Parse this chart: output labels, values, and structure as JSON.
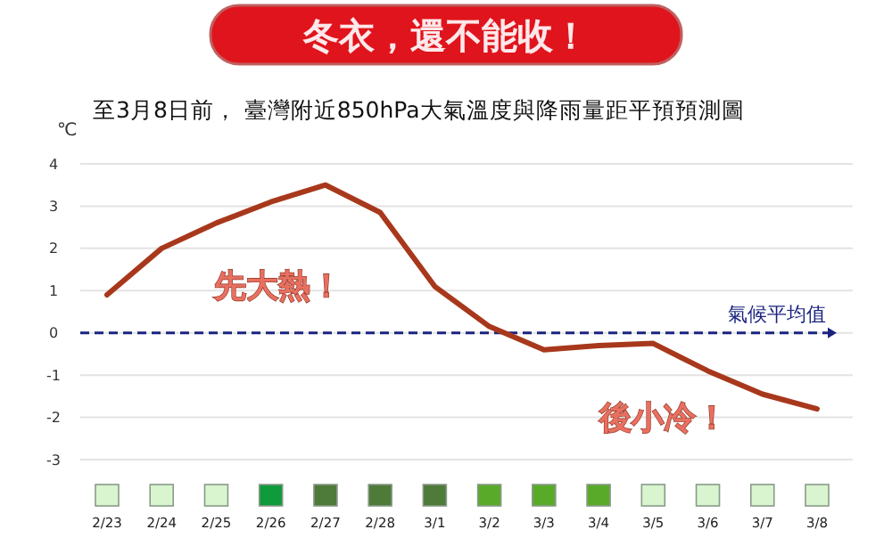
{
  "chart_data": {
    "type": "line",
    "title": "冬衣，還不能收！",
    "subtitle": "至3月8日前， 臺灣附近850hPa大氣溫度與降雨量距平預預測圖",
    "ylabel": "℃",
    "categories": [
      "2/23",
      "2/24",
      "2/25",
      "2/26",
      "2/27",
      "2/28",
      "3/1",
      "3/2",
      "3/3",
      "3/4",
      "3/5",
      "3/6",
      "3/7",
      "3/8"
    ],
    "series": [
      {
        "color": "#a8381c",
        "values": [
          0.9,
          2.0,
          2.6,
          3.1,
          3.5,
          2.85,
          1.1,
          0.15,
          -0.4,
          -0.3,
          -0.25,
          -0.9,
          -1.45,
          -1.8
        ]
      }
    ],
    "ylim": [
      -3,
      4
    ],
    "yticks": [
      -3,
      -2,
      -1,
      0,
      1,
      2,
      3,
      4
    ],
    "grid": "y",
    "marker": "none",
    "line_style": "solid",
    "ref_lines": [
      {
        "axis": "y",
        "value": 0,
        "label": "氣候平均值",
        "color": "#1a237e",
        "line_style": "dashed"
      }
    ],
    "annotations": [
      "先大熱！",
      "後小冷！"
    ]
  }
}
